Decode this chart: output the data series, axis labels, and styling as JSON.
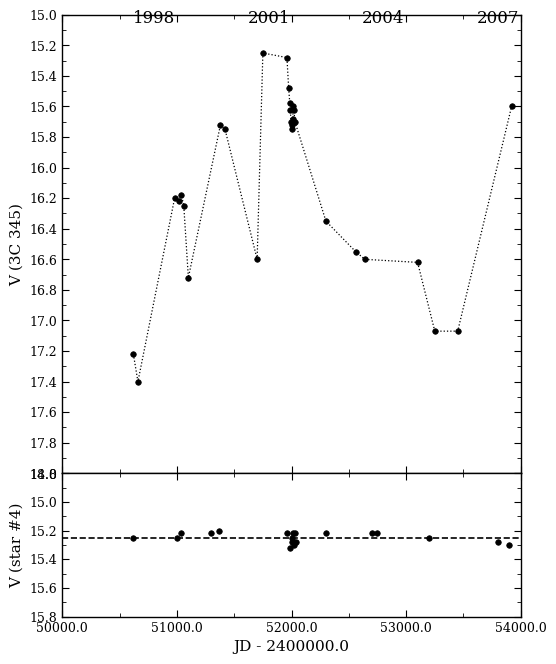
{
  "top_panel": {
    "x": [
      50620,
      50660,
      50980,
      51020,
      51040,
      51060,
      51100,
      51380,
      51420,
      51700,
      51750,
      51960,
      51975,
      51985,
      51990,
      51995,
      52000,
      52005,
      52010,
      52015,
      52020,
      52030,
      52300,
      52560,
      52640,
      53100,
      53250,
      53450,
      53920
    ],
    "y": [
      17.22,
      17.4,
      16.2,
      16.22,
      16.18,
      16.25,
      16.72,
      15.72,
      15.75,
      16.6,
      15.25,
      15.28,
      15.48,
      15.58,
      15.62,
      15.7,
      15.75,
      15.72,
      15.68,
      15.6,
      15.62,
      15.7,
      16.35,
      16.55,
      16.6,
      16.62,
      17.07,
      17.07,
      15.6
    ],
    "ylim": [
      15.0,
      18.0
    ],
    "yticks": [
      15.0,
      15.2,
      15.4,
      15.6,
      15.8,
      16.0,
      16.2,
      16.4,
      16.6,
      16.8,
      17.0,
      17.2,
      17.4,
      17.6,
      17.8,
      18.0
    ],
    "yticklabels": [
      "15.0",
      "15.2",
      "15.4",
      "15.6",
      "15.8",
      "16.0",
      "16.2",
      "16.4",
      "16.6",
      "16.8",
      "17.0",
      "17.2",
      "17.4",
      "17.6",
      "17.8",
      "18.0"
    ],
    "ylabel": "V (3C 345)"
  },
  "bottom_panel": {
    "x": [
      50620,
      51000,
      51040,
      51300,
      51370,
      51960,
      51990,
      52000,
      52005,
      52010,
      52020,
      52025,
      52030,
      52040,
      52300,
      52700,
      52750,
      53200,
      53800,
      53900
    ],
    "y": [
      15.25,
      15.25,
      15.22,
      15.22,
      15.2,
      15.22,
      15.32,
      15.28,
      15.25,
      15.22,
      15.28,
      15.3,
      15.22,
      15.28,
      15.22,
      15.22,
      15.22,
      15.25,
      15.28,
      15.3
    ],
    "dashed_y": 15.25,
    "ylim": [
      14.8,
      15.8
    ],
    "yticks": [
      14.8,
      15.0,
      15.2,
      15.4,
      15.6,
      15.8
    ],
    "yticklabels": [
      "14.8",
      "15.0",
      "15.2",
      "15.4",
      "15.6",
      "15.8"
    ],
    "ylabel": "V (star #4)"
  },
  "xlim": [
    50000,
    54000
  ],
  "xticks": [
    50000,
    51000,
    52000,
    53000,
    54000
  ],
  "xticklabels": [
    "50000.0",
    "51000.0",
    "52000.0",
    "53000.0",
    "54000.0"
  ],
  "xlabel": "JD - 2400000.0",
  "year_labels": [
    {
      "x": 50800,
      "label": "1998"
    },
    {
      "x": 51800,
      "label": "2001"
    },
    {
      "x": 52800,
      "label": "2004"
    },
    {
      "x": 53800,
      "label": "2007"
    }
  ],
  "background_color": "#ffffff",
  "marker_color": "black",
  "marker_size": 4,
  "line_style": ":"
}
